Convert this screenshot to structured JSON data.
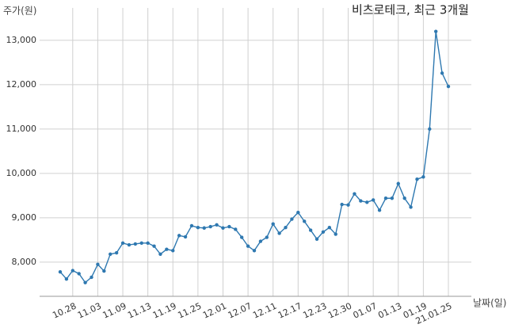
{
  "chart_data": {
    "type": "line",
    "title": "비츠로테크, 최근 3개월",
    "y_label": "주가(원)",
    "x_label": "날짜(일)",
    "categories": [
      null,
      null,
      "10.28",
      null,
      null,
      null,
      "11.03",
      null,
      null,
      null,
      "11.09",
      null,
      null,
      null,
      "11.13",
      null,
      null,
      null,
      "11.19",
      null,
      null,
      null,
      "11.25",
      null,
      null,
      null,
      "12.01",
      null,
      null,
      null,
      "12.07",
      null,
      null,
      null,
      "12.11",
      null,
      null,
      null,
      "12.17",
      null,
      null,
      null,
      "12.23",
      null,
      null,
      null,
      "12.30",
      null,
      null,
      null,
      "01.07",
      null,
      null,
      null,
      "01.13",
      null,
      null,
      null,
      "01.19",
      null,
      null,
      null,
      "21.01.25"
    ],
    "series": [
      {
        "color": "#2e78b0",
        "values": [
          7780,
          7620,
          7810,
          7740,
          7540,
          7660,
          7950,
          7800,
          8180,
          8210,
          8430,
          8390,
          8410,
          8430,
          8430,
          8360,
          8180,
          8290,
          8260,
          8600,
          8570,
          8820,
          8780,
          8770,
          8800,
          8840,
          8770,
          8800,
          8740,
          8560,
          8360,
          8260,
          8470,
          8560,
          8860,
          8650,
          8780,
          8970,
          9120,
          8920,
          8720,
          8520,
          8680,
          8780,
          8630,
          9300,
          9290,
          9540,
          9380,
          9350,
          9400,
          9170,
          9440,
          9440,
          9770,
          9440,
          9240,
          9870,
          9920,
          11000,
          13200,
          12260,
          11960
        ]
      }
    ],
    "ylim": [
      7230,
      13730
    ],
    "yticks": [
      {
        "value": 8000,
        "label": "8,000"
      },
      {
        "value": 9000,
        "label": "9,000"
      },
      {
        "value": 10000,
        "label": "10,000"
      },
      {
        "value": 11000,
        "label": "11,000"
      },
      {
        "value": 12000,
        "label": "12,000"
      },
      {
        "value": 13000,
        "label": "13,000"
      }
    ],
    "grid": true
  }
}
